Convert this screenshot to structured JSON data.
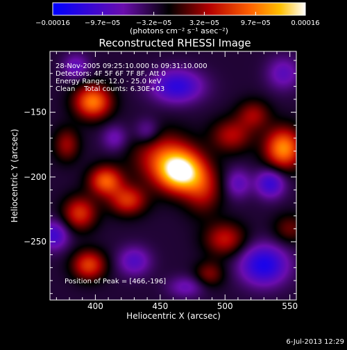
{
  "chart_data": {
    "type": "heatmap",
    "title": "Reconstructed RHESSI Image",
    "xlabel": "Heliocentric X (arcsec)",
    "ylabel": "Heliocentric Y (arcsec)",
    "xlim": [
      365,
      555
    ],
    "ylim": [
      -295,
      -103
    ],
    "x_ticks": [
      400,
      450,
      500,
      550
    ],
    "y_ticks": [
      -150,
      -200,
      -250
    ],
    "colorbar": {
      "range": [
        -0.00016,
        0.00016
      ],
      "tick_values": [
        -0.00016,
        -9.7e-05,
        -3.2e-05,
        3.2e-05,
        9.7e-05,
        0.00016
      ],
      "tick_labels": [
        "−0.00016",
        "−9.7e−05",
        "−3.2e−05",
        "3.2e−05",
        "9.7e−05",
        "0.00016"
      ],
      "unit_text": "(photons cm⁻² s⁻¹ asec⁻²)"
    },
    "annotations": [
      "28-Nov-2005 09:25:10.000 to 09:31:10.000",
      "Detectors: 4F 5F 6F 7F 8F, Att 0",
      "Energy Range: 12.0 - 25.0 keV",
      "Clean    Total counts: 6.30E+03"
    ],
    "peak": {
      "label": "Position of Peak = [466,-196]",
      "x": 466,
      "y": -196,
      "value": 0.00016
    },
    "colormap": [
      "#0000ff",
      "#6a0dad",
      "#000000",
      "#b40000",
      "#ff6000",
      "#ffc000",
      "#ffffff"
    ],
    "sources": [
      {
        "x": 466,
        "y": -196,
        "sx": 12,
        "sy": 11,
        "amp": 1.15
      },
      {
        "x": 452,
        "y": -185,
        "sx": 16,
        "sy": 14,
        "amp": 0.55
      },
      {
        "x": 483,
        "y": -210,
        "sx": 10,
        "sy": 13,
        "amp": 0.45
      },
      {
        "x": 545,
        "y": -178,
        "sx": 10,
        "sy": 11,
        "amp": 0.9
      },
      {
        "x": 398,
        "y": -142,
        "sx": 10,
        "sy": 9,
        "amp": 0.85
      },
      {
        "x": 408,
        "y": -203,
        "sx": 9,
        "sy": 8,
        "amp": 0.75
      },
      {
        "x": 388,
        "y": -228,
        "sx": 9,
        "sy": 9,
        "amp": 0.6
      },
      {
        "x": 425,
        "y": -218,
        "sx": 10,
        "sy": 8,
        "amp": 0.6
      },
      {
        "x": 395,
        "y": -268,
        "sx": 9,
        "sy": 8,
        "amp": 0.65
      },
      {
        "x": 500,
        "y": -248,
        "sx": 11,
        "sy": 9,
        "amp": 0.5
      },
      {
        "x": 505,
        "y": -168,
        "sx": 11,
        "sy": 9,
        "amp": 0.45
      },
      {
        "x": 522,
        "y": -152,
        "sx": 9,
        "sy": 8,
        "amp": 0.4
      },
      {
        "x": 488,
        "y": -275,
        "sx": 8,
        "sy": 7,
        "amp": 0.35
      },
      {
        "x": 378,
        "y": -175,
        "sx": 7,
        "sy": 9,
        "amp": 0.4
      },
      {
        "x": 430,
        "y": -265,
        "sx": 9,
        "sy": 8,
        "amp": -0.4
      },
      {
        "x": 530,
        "y": -268,
        "sx": 13,
        "sy": 11,
        "amp": -0.7
      },
      {
        "x": 463,
        "y": -130,
        "sx": 14,
        "sy": 9,
        "amp": -0.6
      },
      {
        "x": 535,
        "y": -205,
        "sx": 8,
        "sy": 8,
        "amp": -0.55
      },
      {
        "x": 368,
        "y": -245,
        "sx": 8,
        "sy": 8,
        "amp": -0.5
      },
      {
        "x": 510,
        "y": -205,
        "sx": 7,
        "sy": 8,
        "amp": -0.35
      },
      {
        "x": 440,
        "y": -165,
        "sx": 7,
        "sy": 7,
        "amp": -0.3
      },
      {
        "x": 415,
        "y": -170,
        "sx": 7,
        "sy": 7,
        "amp": -0.3
      },
      {
        "x": 545,
        "y": -120,
        "sx": 9,
        "sy": 9,
        "amp": -0.35
      },
      {
        "x": 470,
        "y": -285,
        "sx": 10,
        "sy": 6,
        "amp": -0.3
      },
      {
        "x": 385,
        "y": -115,
        "sx": 7,
        "sy": 7,
        "amp": -0.35
      },
      {
        "x": 550,
        "y": -240,
        "sx": 9,
        "sy": 8,
        "amp": 0.3
      }
    ]
  },
  "footer": {
    "timestamp": "6-Jul-2013 12:29"
  }
}
